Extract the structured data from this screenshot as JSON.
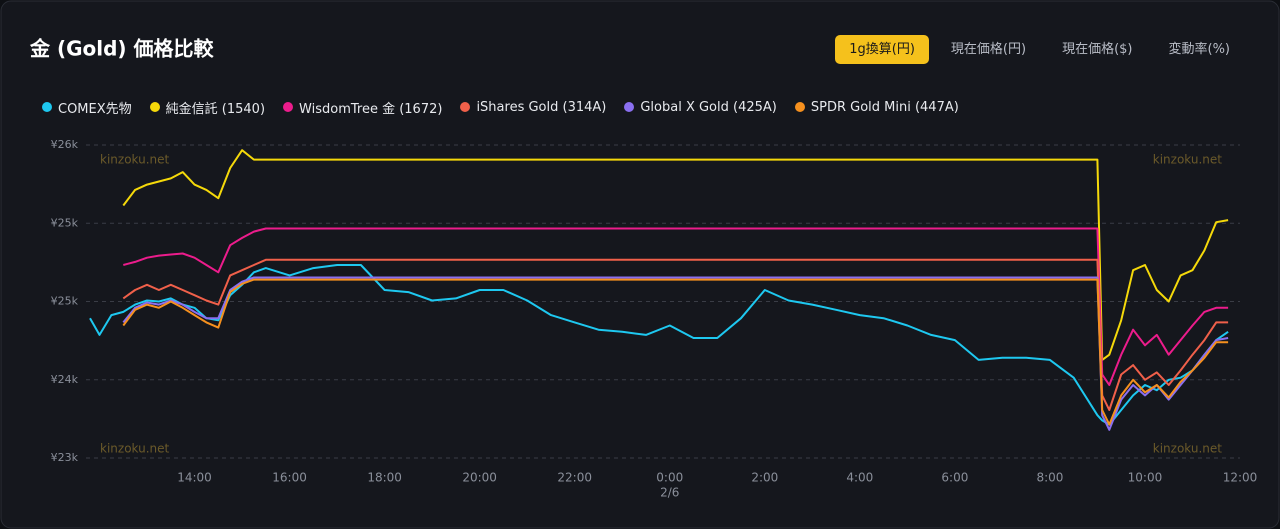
{
  "header": {
    "buttons": [
      {
        "label": "1g換算(円)",
        "active": true
      },
      {
        "label": "現在価格(円)",
        "active": false
      },
      {
        "label": "現在価格($)",
        "active": false
      },
      {
        "label": "変動率(%)",
        "active": false
      }
    ]
  },
  "chart_data": {
    "type": "line",
    "title": "金 (Gold) 価格比較",
    "watermark": "kinzoku.net",
    "grid": true,
    "xlim": [
      11.8,
      36
    ],
    "ylim": [
      23000,
      26000
    ],
    "xticks": [
      {
        "value": 14,
        "label": "14:00"
      },
      {
        "value": 16,
        "label": "16:00"
      },
      {
        "value": 18,
        "label": "18:00"
      },
      {
        "value": 20,
        "label": "20:00"
      },
      {
        "value": 22,
        "label": "22:00"
      },
      {
        "value": 24,
        "label": "0:00",
        "sublabel": "2/6"
      },
      {
        "value": 26,
        "label": "2:00"
      },
      {
        "value": 28,
        "label": "4:00"
      },
      {
        "value": 30,
        "label": "6:00"
      },
      {
        "value": 32,
        "label": "8:00"
      },
      {
        "value": 34,
        "label": "10:00"
      },
      {
        "value": 36,
        "label": "12:00"
      }
    ],
    "yticks": [
      {
        "value": 26000,
        "label": "¥26k"
      },
      {
        "value": 25250,
        "label": "¥25k"
      },
      {
        "value": 24500,
        "label": "¥25k"
      },
      {
        "value": 23750,
        "label": "¥24k"
      },
      {
        "value": 23000,
        "label": "¥23k"
      }
    ],
    "x": [
      11.8,
      12.0,
      12.25,
      12.5,
      12.75,
      13.0,
      13.25,
      13.5,
      13.75,
      14.0,
      14.25,
      14.5,
      14.75,
      15.0,
      15.25,
      15.5,
      16,
      16.5,
      17,
      17.5,
      18,
      18.5,
      19,
      19.5,
      20,
      20.5,
      21,
      21.5,
      22,
      22.5,
      23,
      23.5,
      24,
      24.5,
      25,
      25.5,
      26,
      26.5,
      27,
      27.5,
      28,
      28.5,
      29,
      29.5,
      30,
      30.5,
      31,
      31.5,
      32,
      32.5,
      33.0,
      33.1,
      33.25,
      33.5,
      33.75,
      34,
      34.25,
      34.5,
      34.75,
      35,
      35.25,
      35.5,
      35.75,
      36
    ],
    "series": [
      {
        "name": "COMEX先物",
        "color": "#1ec8f0",
        "values": [
          24340,
          24180,
          24370,
          24400,
          24470,
          24510,
          24500,
          24530,
          24470,
          24440,
          24340,
          24320,
          24560,
          24660,
          24780,
          24820,
          24750,
          24820,
          24850,
          24850,
          24610,
          24590,
          24510,
          24530,
          24610,
          24610,
          24510,
          24370,
          24300,
          24230,
          24210,
          24180,
          24270,
          24150,
          24150,
          24340,
          24610,
          24510,
          24470,
          24420,
          24370,
          24340,
          24270,
          24180,
          24130,
          23940,
          23960,
          23960,
          23940,
          23770,
          23410,
          23360,
          23320,
          23460,
          23600,
          23700,
          23650,
          23750,
          23770,
          23840,
          23990,
          24130,
          24210,
          null
        ]
      },
      {
        "name": "純金信託 (1540)",
        "color": "#f5d90a",
        "values": [
          null,
          null,
          null,
          25420,
          25570,
          25620,
          25650,
          25680,
          25740,
          25620,
          25570,
          25490,
          25780,
          25950,
          25860,
          25860,
          25860,
          25860,
          25860,
          25860,
          25860,
          25860,
          25860,
          25860,
          25860,
          25860,
          25860,
          25860,
          25860,
          25860,
          25860,
          25860,
          25860,
          25860,
          25860,
          25860,
          25860,
          25860,
          25860,
          25860,
          25860,
          25860,
          25860,
          25860,
          25860,
          25860,
          25860,
          25860,
          25860,
          25860,
          25860,
          23940,
          23990,
          24320,
          24800,
          24850,
          24610,
          24500,
          24750,
          24800,
          24990,
          25260,
          25280,
          null
        ]
      },
      {
        "name": "WisdomTree 金 (1672)",
        "color": "#ec1c8c",
        "values": [
          null,
          null,
          null,
          24850,
          24880,
          24920,
          24940,
          24950,
          24960,
          24920,
          24850,
          24780,
          25040,
          25110,
          25170,
          25200,
          25200,
          25200,
          25200,
          25200,
          25200,
          25200,
          25200,
          25200,
          25200,
          25200,
          25200,
          25200,
          25200,
          25200,
          25200,
          25200,
          25200,
          25200,
          25200,
          25200,
          25200,
          25200,
          25200,
          25200,
          25200,
          25200,
          25200,
          25200,
          25200,
          25200,
          25200,
          25200,
          25200,
          25200,
          25200,
          23800,
          23700,
          23990,
          24230,
          24080,
          24180,
          23990,
          24130,
          24270,
          24400,
          24440,
          24440,
          null
        ]
      },
      {
        "name": "iShares Gold (314A)",
        "color": "#f0604a",
        "values": [
          null,
          null,
          null,
          24530,
          24610,
          24660,
          24610,
          24660,
          24610,
          24560,
          24510,
          24470,
          24750,
          24800,
          24850,
          24900,
          24900,
          24900,
          24900,
          24900,
          24900,
          24900,
          24900,
          24900,
          24900,
          24900,
          24900,
          24900,
          24900,
          24900,
          24900,
          24900,
          24900,
          24900,
          24900,
          24900,
          24900,
          24900,
          24900,
          24900,
          24900,
          24900,
          24900,
          24900,
          24900,
          24900,
          24900,
          24900,
          24900,
          24900,
          24900,
          23600,
          23460,
          23800,
          23890,
          23750,
          23820,
          23700,
          23840,
          23990,
          24130,
          24300,
          24300,
          null
        ]
      },
      {
        "name": "Global X Gold (425A)",
        "color": "#8a6ff0",
        "values": [
          null,
          null,
          null,
          24300,
          24440,
          24490,
          24470,
          24510,
          24470,
          24400,
          24340,
          24340,
          24610,
          24690,
          24730,
          24730,
          24730,
          24730,
          24730,
          24730,
          24730,
          24730,
          24730,
          24730,
          24730,
          24730,
          24730,
          24730,
          24730,
          24730,
          24730,
          24730,
          24730,
          24730,
          24730,
          24730,
          24730,
          24730,
          24730,
          24730,
          24730,
          24730,
          24730,
          24730,
          24730,
          24730,
          24730,
          24730,
          24730,
          24730,
          24730,
          23410,
          23270,
          23560,
          23700,
          23600,
          23700,
          23560,
          23700,
          23840,
          23990,
          24130,
          24150,
          null
        ]
      },
      {
        "name": "SPDR Gold Mini (447A)",
        "color": "#f5901e",
        "values": [
          null,
          null,
          null,
          24270,
          24420,
          24470,
          24440,
          24500,
          24440,
          24370,
          24300,
          24250,
          24590,
          24670,
          24710,
          24710,
          24710,
          24710,
          24710,
          24710,
          24710,
          24710,
          24710,
          24710,
          24710,
          24710,
          24710,
          24710,
          24710,
          24710,
          24710,
          24710,
          24710,
          24710,
          24710,
          24710,
          24710,
          24710,
          24710,
          24710,
          24710,
          24710,
          24710,
          24710,
          24710,
          24710,
          24710,
          24710,
          24710,
          24710,
          24710,
          23460,
          23320,
          23600,
          23750,
          23630,
          23700,
          23580,
          23730,
          23840,
          23960,
          24110,
          24110,
          null
        ]
      }
    ]
  }
}
